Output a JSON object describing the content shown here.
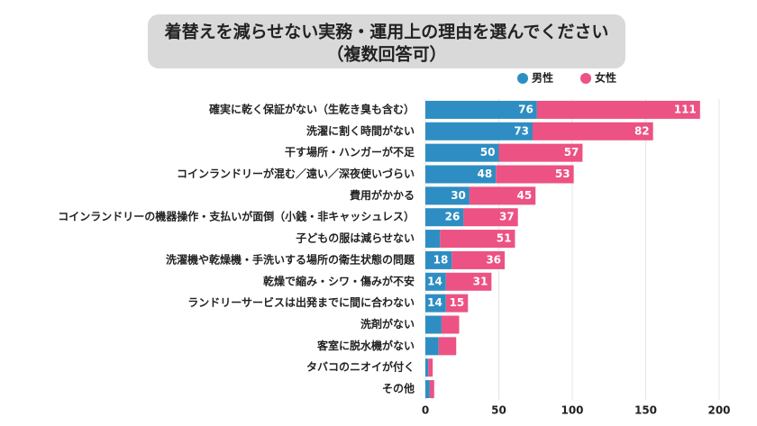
{
  "chart_data": {
    "type": "stacked-barh",
    "title": [
      "着替えを減らせない実務・運用上の理由を選んでください",
      "（複数回答可）"
    ],
    "categories": [
      "確実に乾く保証がない（生乾き臭も含む）",
      "洗濯に割く時間がない",
      "干す場所・ハンガーが不足",
      "コインランドリーが混む／遠い／深夜使いづらい",
      "費用がかかる",
      "コインランドリーの機器操作・支払いが面倒（小銭・非キャッシュレス）",
      "子どもの服は減らせない",
      "洗濯機や乾燥機・手洗いする場所の衛生状態の問題",
      "乾燥で縮み・シワ・傷みが不安",
      "ランドリーサービスは出発までに間に合わない",
      "洗剤がない",
      "客室に脱水機がない",
      "タバコのニオイが付く",
      "その他"
    ],
    "series": [
      {
        "name": "男性",
        "color": "#2e8ec3",
        "values": [
          76,
          73,
          50,
          48,
          30,
          26,
          10,
          18,
          14,
          14,
          11,
          9,
          2,
          3
        ],
        "value_labels": [
          "76",
          "73",
          "50",
          "48",
          "30",
          "26",
          null,
          "18",
          "14",
          "14",
          null,
          null,
          null,
          null
        ]
      },
      {
        "name": "女性",
        "color": "#ec5283",
        "values": [
          111,
          82,
          57,
          53,
          45,
          37,
          51,
          36,
          31,
          15,
          12,
          12,
          3,
          3
        ],
        "value_labels": [
          "111",
          "82",
          "57",
          "53",
          "45",
          "37",
          "51",
          "36",
          "31",
          "15",
          null,
          null,
          null,
          null
        ]
      }
    ],
    "xlim": [
      0,
      200
    ],
    "xticks": [
      0,
      50,
      100,
      150,
      200
    ],
    "grid": true
  }
}
